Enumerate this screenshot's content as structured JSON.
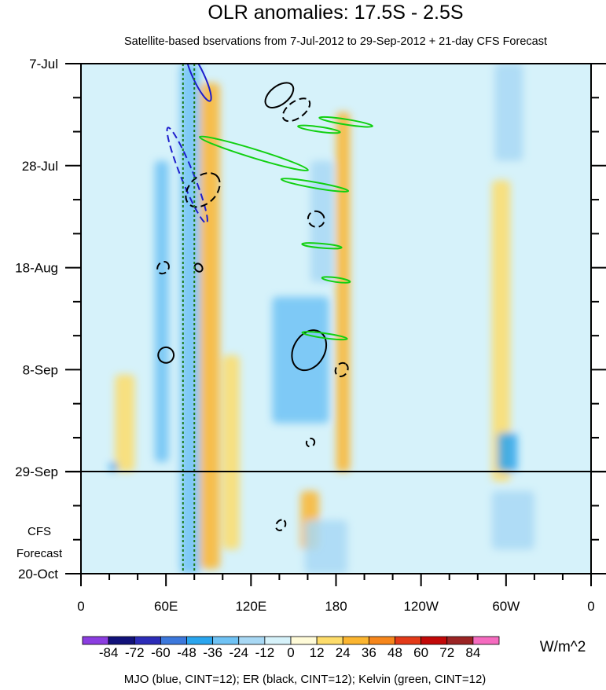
{
  "chart_data": {
    "type": "heatmap",
    "title": "OLR anomalies: 17.5S - 2.5S",
    "subtitle": "Satellite-based bservations from 7-Jul-2012 to 29-Sep-2012 + 21-day CFS Forecast",
    "x_range": [
      0,
      360
    ],
    "x_ticks": [
      {
        "lon": 0,
        "label": "0"
      },
      {
        "lon": 60,
        "label": "60E"
      },
      {
        "lon": 120,
        "label": "120E"
      },
      {
        "lon": 180,
        "label": "180"
      },
      {
        "lon": 240,
        "label": "120W"
      },
      {
        "lon": 300,
        "label": "60W"
      },
      {
        "lon": 360,
        "label": "0"
      }
    ],
    "y_range_days": [
      0,
      105
    ],
    "y_ticks": [
      {
        "day": 0,
        "label": "7-Jul"
      },
      {
        "day": 21,
        "label": "28-Jul"
      },
      {
        "day": 42,
        "label": "18-Aug"
      },
      {
        "day": 63,
        "label": "8-Sep"
      },
      {
        "day": 84,
        "label": "29-Sep"
      },
      {
        "day": 105,
        "label": "20-Oct"
      }
    ],
    "forecast_start_day": 84,
    "forecast_label": [
      "CFS",
      "Forecast"
    ],
    "reference_lines_lon": [
      72,
      80
    ],
    "colorbar": {
      "levels": [
        "-84",
        "-72",
        "-60",
        "-48",
        "-36",
        "-24",
        "-12",
        "0",
        "12",
        "24",
        "36",
        "48",
        "60",
        "72",
        "84"
      ],
      "colors": [
        "#8b3de0",
        "#12127a",
        "#2c2cb8",
        "#3c78dc",
        "#2aa5ee",
        "#6fc2f4",
        "#a8d8f4",
        "#d6f2fa",
        "#fffbd8",
        "#fddc6a",
        "#fbb530",
        "#f6861b",
        "#e33a18",
        "#c20808",
        "#9b2424",
        "#f56bbf"
      ],
      "unit": "W/m^2"
    },
    "footnote": "MJO (blue, CINT=12); ER (black, CINT=12); Kelvin (green, CINT=12)",
    "regions": [
      {
        "lon": [
          70,
          84
        ],
        "day": [
          0,
          105
        ],
        "value": -30
      },
      {
        "lon": [
          52,
          62
        ],
        "day": [
          20,
          82
        ],
        "value": -30
      },
      {
        "lon": [
          84,
          98
        ],
        "day": [
          4,
          104
        ],
        "value": 28
      },
      {
        "lon": [
          100,
          112
        ],
        "day": [
          60,
          100
        ],
        "value": 16
      },
      {
        "lon": [
          135,
          175
        ],
        "day": [
          48,
          74
        ],
        "value": -30
      },
      {
        "lon": [
          180,
          190
        ],
        "day": [
          10,
          84
        ],
        "value": 24
      },
      {
        "lon": [
          162,
          178
        ],
        "day": [
          20,
          45
        ],
        "value": -20
      },
      {
        "lon": [
          155,
          168
        ],
        "day": [
          88,
          100
        ],
        "value": 30
      },
      {
        "lon": [
          158,
          188
        ],
        "day": [
          94,
          105
        ],
        "value": -14
      },
      {
        "lon": [
          290,
          303
        ],
        "day": [
          24,
          86
        ],
        "value": 20
      },
      {
        "lon": [
          294,
          308
        ],
        "day": [
          76,
          84
        ],
        "value": -45
      },
      {
        "lon": [
          292,
          312
        ],
        "day": [
          0,
          20
        ],
        "value": -14
      },
      {
        "lon": [
          290,
          320
        ],
        "day": [
          88,
          100
        ],
        "value": -14
      },
      {
        "lon": [
          24,
          38
        ],
        "day": [
          64,
          84
        ],
        "value": 16
      },
      {
        "lon": [
          20,
          26
        ],
        "day": [
          82,
          84
        ],
        "value": -40
      }
    ],
    "contours": [
      {
        "wave": "MJO",
        "color": "#1d1dcc",
        "style": "solid",
        "lon": 83,
        "day": 2.6,
        "rx": 4,
        "ry": 5.6,
        "angle": -25
      },
      {
        "wave": "MJO",
        "color": "#1d1dcc",
        "style": "dashed",
        "lon": 75,
        "day": 23,
        "rx": 4.5,
        "ry": 10.6,
        "angle": -22
      },
      {
        "wave": "ER",
        "color": "#000000",
        "style": "solid",
        "lon": 140,
        "day": 6.5,
        "rx": 11.5,
        "ry": 1.9,
        "angle": -38
      },
      {
        "wave": "ER",
        "color": "#000000",
        "style": "dashed",
        "lon": 152,
        "day": 9.5,
        "rx": 11,
        "ry": 1.7,
        "angle": -36
      },
      {
        "wave": "ER",
        "color": "#000000",
        "style": "dashed",
        "lon": 86,
        "day": 26,
        "rx": 14,
        "ry": 2.8,
        "angle": -45
      },
      {
        "wave": "ER",
        "color": "#000000",
        "style": "dashed",
        "lon": 166,
        "day": 32,
        "rx": 5.5,
        "ry": 1.7,
        "angle": -58
      },
      {
        "wave": "ER",
        "color": "#000000",
        "style": "dashed",
        "lon": 58,
        "day": 42,
        "rx": 4.5,
        "ry": 1.1,
        "angle": -50
      },
      {
        "wave": "ER",
        "color": "#000000",
        "style": "solid",
        "lon": 83,
        "day": 42,
        "rx": 2.5,
        "ry": 0.9,
        "angle": -40
      },
      {
        "wave": "ER",
        "color": "#000000",
        "style": "solid",
        "lon": 161,
        "day": 59,
        "rx": 15,
        "ry": 3.2,
        "angle": -60
      },
      {
        "wave": "ER",
        "color": "#000000",
        "style": "solid",
        "lon": 60,
        "day": 60,
        "rx": 5.5,
        "ry": 1.6,
        "angle": -58
      },
      {
        "wave": "ER",
        "color": "#000000",
        "style": "dashed",
        "lon": 184,
        "day": 63,
        "rx": 5,
        "ry": 1.2,
        "angle": -55
      },
      {
        "wave": "ER",
        "color": "#000000",
        "style": "dashed",
        "lon": 162,
        "day": 78,
        "rx": 3,
        "ry": 0.8,
        "angle": -50
      },
      {
        "wave": "ER",
        "color": "#000000",
        "style": "dashed",
        "lon": 141,
        "day": 95,
        "rx": 4,
        "ry": 0.9,
        "angle": -55
      },
      {
        "wave": "Kelvin",
        "color": "#11d011",
        "style": "solid",
        "lon": 187,
        "day": 12,
        "rx": 19,
        "ry": 0.55,
        "angle": 9
      },
      {
        "wave": "Kelvin",
        "color": "#11d011",
        "style": "solid",
        "lon": 168,
        "day": 13.5,
        "rx": 15,
        "ry": 0.5,
        "angle": 8
      },
      {
        "wave": "Kelvin",
        "color": "#11d011",
        "style": "solid",
        "lon": 122,
        "day": 18.5,
        "rx": 40,
        "ry": 0.9,
        "angle": 17
      },
      {
        "wave": "Kelvin",
        "color": "#11d011",
        "style": "solid",
        "lon": 165,
        "day": 25,
        "rx": 24,
        "ry": 0.6,
        "angle": 10
      },
      {
        "wave": "Kelvin",
        "color": "#11d011",
        "style": "solid",
        "lon": 170,
        "day": 37.5,
        "rx": 14,
        "ry": 0.45,
        "angle": 5
      },
      {
        "wave": "Kelvin",
        "color": "#11d011",
        "style": "solid",
        "lon": 180,
        "day": 44.5,
        "rx": 10,
        "ry": 0.45,
        "angle": 8
      },
      {
        "wave": "Kelvin",
        "color": "#11d011",
        "style": "solid",
        "lon": 172,
        "day": 56,
        "rx": 16,
        "ry": 0.5,
        "angle": 8
      }
    ]
  }
}
